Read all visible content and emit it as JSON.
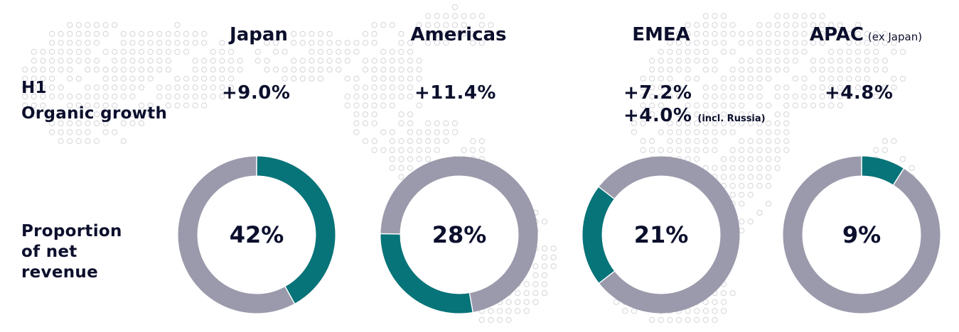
{
  "row_labels": {
    "growth": [
      "H1",
      "Organic growth"
    ],
    "proportion": [
      "Proportion",
      "of net",
      "revenue"
    ]
  },
  "colors": {
    "accent": "#067478",
    "remainder": "#9a9aac",
    "text": "#0b0f2c",
    "map_dots": "#d4d4d9"
  },
  "regions": [
    {
      "name": "Japan",
      "note": "",
      "growth": [
        "+9.0%"
      ],
      "growth_note": ""
    },
    {
      "name": "Americas",
      "note": "",
      "growth": [
        "+11.4%"
      ],
      "growth_note": ""
    },
    {
      "name": "EMEA",
      "note": "",
      "growth": [
        "+7.2%",
        "+4.0%"
      ],
      "growth_note": "(incl. Russia)"
    },
    {
      "name": "APAC",
      "note": "(ex Japan)",
      "growth": [
        "+4.8%"
      ],
      "growth_note": ""
    }
  ],
  "chart_data": {
    "type": "pie",
    "title": "",
    "categories": [
      "Japan",
      "Americas",
      "EMEA",
      "APAC"
    ],
    "values": [
      42,
      28,
      21,
      9
    ],
    "value_labels": [
      "42%",
      "28%",
      "21%",
      "9%"
    ],
    "unit": "%"
  }
}
